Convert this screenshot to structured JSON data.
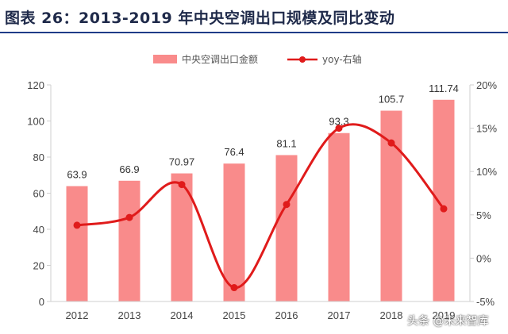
{
  "title": "图表 26：2013-2019 年中央空调出口规模及同比变动",
  "watermark": "头条 @未来智库",
  "colors": {
    "bar": "#F98B8B",
    "line": "#E01B1B",
    "axis": "#cfcfcf",
    "title_rule": "#1f3c88"
  },
  "chart_data": {
    "type": "bar+line",
    "title": "",
    "categories": [
      "2012",
      "2013",
      "2014",
      "2015",
      "2016",
      "2017",
      "2018",
      "2019"
    ],
    "series": [
      {
        "name": "中央空调出口金额",
        "type": "bar",
        "axis": "left",
        "values": [
          63.9,
          66.9,
          70.97,
          76.4,
          81.1,
          93.3,
          105.7,
          111.74
        ],
        "labels": [
          "63.9",
          "66.9",
          "70.97",
          "76.4",
          "81.1",
          "93.3",
          "105.7",
          "111.74"
        ]
      },
      {
        "name": "yoy-右轴",
        "type": "line",
        "axis": "right",
        "smooth": true,
        "values": [
          3.8,
          4.7,
          8.5,
          -3.4,
          6.2,
          15.0,
          13.3,
          5.7
        ]
      }
    ],
    "y_left": {
      "min": 0,
      "max": 120,
      "step": 20,
      "ticks": [
        "0",
        "20",
        "40",
        "60",
        "80",
        "100",
        "120"
      ]
    },
    "y_right": {
      "min": -5,
      "max": 20,
      "step": 5,
      "ticks": [
        "-5%",
        "0%",
        "5%",
        "10%",
        "15%",
        "20%"
      ]
    },
    "legend": "top-center",
    "grid": false
  }
}
